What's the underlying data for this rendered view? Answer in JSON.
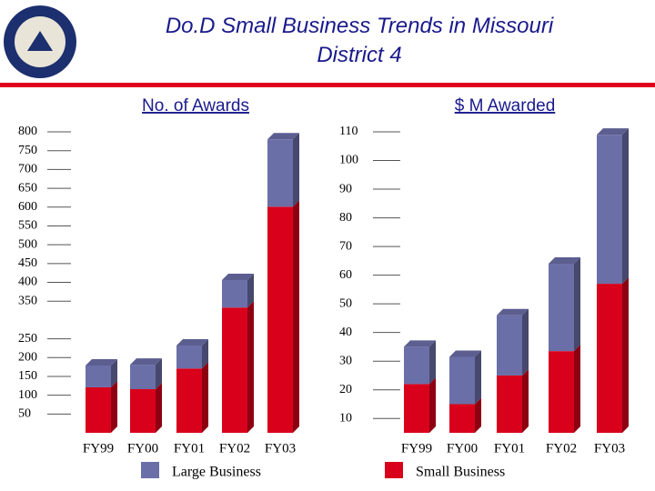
{
  "title": "Do.D Small Business Trends in Missouri District 4",
  "chart_data": [
    {
      "type": "bar3d-stacked",
      "title": "No. of Awards",
      "categories": [
        "FY99",
        "FY00",
        "FY01",
        "FY02",
        "FY03"
      ],
      "series": [
        {
          "name": "Small Business",
          "color": "#d9001b",
          "values": [
            121,
            116,
            171,
            333,
            601
          ]
        },
        {
          "name": "Large Business",
          "color": "#6b6fa8",
          "values": [
            58,
            65,
            61,
            73,
            179
          ]
        }
      ],
      "ylim": [
        0,
        800
      ],
      "yticks": [
        800,
        750,
        700,
        650,
        600,
        550,
        500,
        450,
        400,
        350,
        250,
        200,
        150,
        100,
        50
      ]
    },
    {
      "type": "bar3d-stacked",
      "title": "$ M Awarded",
      "categories": [
        "FY99",
        "FY00",
        "FY01",
        "FY02",
        "FY03"
      ],
      "series": [
        {
          "color": "#d9001b",
          "values": [
            22,
            15,
            25,
            33.5,
            57
          ]
        },
        {
          "color": "#6b6fa8",
          "values": [
            13,
            16.5,
            21,
            30.5,
            52
          ]
        }
      ],
      "ylim": [
        5,
        110
      ],
      "yticks": [
        110,
        100,
        90,
        80,
        70,
        60,
        50,
        40,
        30,
        20,
        10
      ]
    }
  ]
}
